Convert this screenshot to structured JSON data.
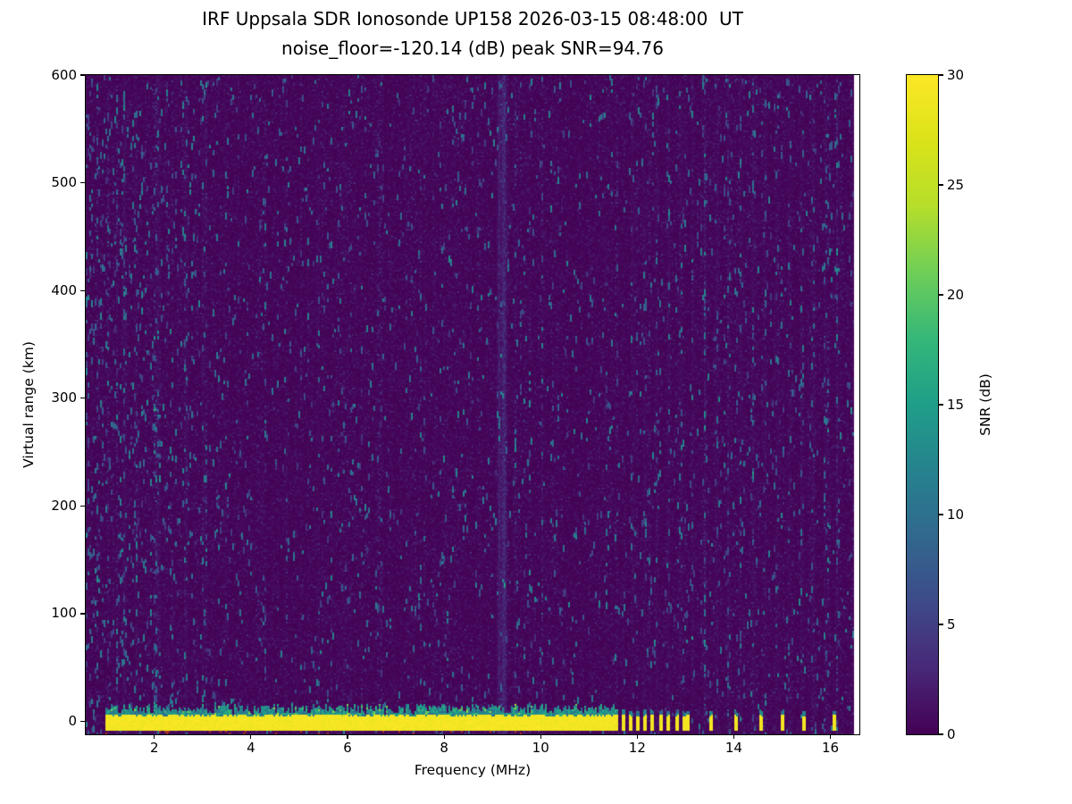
{
  "figure": {
    "title": "IRF Uppsala SDR Ionosonde UP158 2026-03-15 08:48:00  UT",
    "subtitle": "noise_floor=-120.14 (dB) peak SNR=94.76"
  },
  "chart_data": {
    "type": "heatmap",
    "title": "IRF Uppsala SDR Ionosonde UP158 2026-03-15 08:48:00  UT",
    "subtitle": "noise_floor=-120.14 (dB) peak SNR=94.76",
    "station": "UP158",
    "timestamp_ut": "2026-03-15 08:48:00",
    "noise_floor_db": -120.14,
    "peak_snr_db": 94.76,
    "xlabel": "Frequency (MHz)",
    "ylabel": "Virtual range (km)",
    "xlim": [
      0.58,
      16.6
    ],
    "ylim": [
      -12,
      600
    ],
    "xticks": [
      2,
      4,
      6,
      8,
      10,
      12,
      14,
      16
    ],
    "yticks": [
      0,
      100,
      200,
      300,
      400,
      500,
      600
    ],
    "grid": false,
    "colorbar": {
      "label": "SNR (dB)",
      "min": 0,
      "max": 30,
      "ticks": [
        0,
        5,
        10,
        15,
        20,
        25,
        30
      ],
      "colormap": "viridis"
    },
    "data_extent_mhz": [
      0.58,
      16.48
    ],
    "features": {
      "background_noise_snr_db": [
        0,
        2
      ],
      "speckle_snr_db": [
        4,
        13
      ],
      "ground_return": {
        "freq_start_mhz": 1.0,
        "freq_end_mhz": 11.62,
        "range_km": [
          -8.5,
          5
        ],
        "peak_snr_db": 30,
        "clutter_top_km": 16,
        "clutter_snr_db": [
          9,
          18
        ]
      },
      "stepped_pulses_mhz": [
        11.73,
        11.86,
        12.0,
        12.15,
        12.31,
        12.48,
        12.65,
        12.83,
        12.98,
        13.06,
        13.52,
        14.05,
        14.55,
        15.02,
        15.45,
        16.08
      ],
      "rfi_stripes": [
        {
          "freq_mhz": 9.14,
          "strength_db": 2.0,
          "width_mhz": 0.05,
          "style": "smooth"
        },
        {
          "freq_mhz": 9.24,
          "strength_db": 3.2,
          "width_mhz": 0.07,
          "style": "smooth"
        },
        {
          "freq_mhz": 1.38,
          "strength_db": 2.0,
          "width_mhz": 0.06,
          "style": "speckle"
        },
        {
          "freq_mhz": 1.62,
          "strength_db": 1.6,
          "width_mhz": 0.05,
          "style": "speckle"
        },
        {
          "freq_mhz": 2.08,
          "strength_db": 1.8,
          "width_mhz": 0.06,
          "style": "speckle"
        },
        {
          "freq_mhz": 2.66,
          "strength_db": 1.6,
          "width_mhz": 0.06,
          "style": "speckle"
        },
        {
          "freq_mhz": 3.02,
          "strength_db": 1.4,
          "width_mhz": 0.05,
          "style": "speckle"
        },
        {
          "freq_mhz": 5.4,
          "strength_db": 1.2,
          "width_mhz": 0.05,
          "style": "speckle"
        },
        {
          "freq_mhz": 11.9,
          "strength_db": 1.4,
          "width_mhz": 0.05,
          "style": "speckle"
        },
        {
          "freq_mhz": 12.15,
          "strength_db": 1.4,
          "width_mhz": 0.05,
          "style": "speckle"
        },
        {
          "freq_mhz": 12.4,
          "strength_db": 1.4,
          "width_mhz": 0.05,
          "style": "speckle"
        },
        {
          "freq_mhz": 12.65,
          "strength_db": 1.4,
          "width_mhz": 0.05,
          "style": "speckle"
        },
        {
          "freq_mhz": 12.9,
          "strength_db": 1.4,
          "width_mhz": 0.05,
          "style": "speckle"
        },
        {
          "freq_mhz": 13.15,
          "strength_db": 1.4,
          "width_mhz": 0.05,
          "style": "speckle"
        },
        {
          "freq_mhz": 13.4,
          "strength_db": 1.4,
          "width_mhz": 0.05,
          "style": "speckle"
        },
        {
          "freq_mhz": 13.65,
          "strength_db": 1.4,
          "width_mhz": 0.05,
          "style": "speckle"
        },
        {
          "freq_mhz": 13.9,
          "strength_db": 1.4,
          "width_mhz": 0.05,
          "style": "speckle"
        },
        {
          "freq_mhz": 14.15,
          "strength_db": 1.4,
          "width_mhz": 0.05,
          "style": "speckle"
        },
        {
          "freq_mhz": 14.4,
          "strength_db": 1.4,
          "width_mhz": 0.05,
          "style": "speckle"
        },
        {
          "freq_mhz": 14.65,
          "strength_db": 1.4,
          "width_mhz": 0.05,
          "style": "speckle"
        },
        {
          "freq_mhz": 14.9,
          "strength_db": 1.4,
          "width_mhz": 0.05,
          "style": "speckle"
        },
        {
          "freq_mhz": 15.15,
          "strength_db": 1.4,
          "width_mhz": 0.05,
          "style": "speckle"
        },
        {
          "freq_mhz": 15.4,
          "strength_db": 1.4,
          "width_mhz": 0.05,
          "style": "speckle"
        },
        {
          "freq_mhz": 15.65,
          "strength_db": 1.4,
          "width_mhz": 0.05,
          "style": "speckle"
        },
        {
          "freq_mhz": 15.9,
          "strength_db": 1.4,
          "width_mhz": 0.05,
          "style": "speckle"
        },
        {
          "freq_mhz": 16.15,
          "strength_db": 1.4,
          "width_mhz": 0.05,
          "style": "speckle"
        }
      ],
      "baseline_specks": {
        "color": "#a83424",
        "range_km": [
          -11.2,
          -9.2
        ],
        "freq_end_mhz": 9.6
      }
    },
    "viridis_stops": [
      "#440154",
      "#482878",
      "#3e4a89",
      "#31688e",
      "#26828e",
      "#1f9e89",
      "#35b779",
      "#6ece58",
      "#b5de2b",
      "#dae319",
      "#fde725"
    ]
  }
}
